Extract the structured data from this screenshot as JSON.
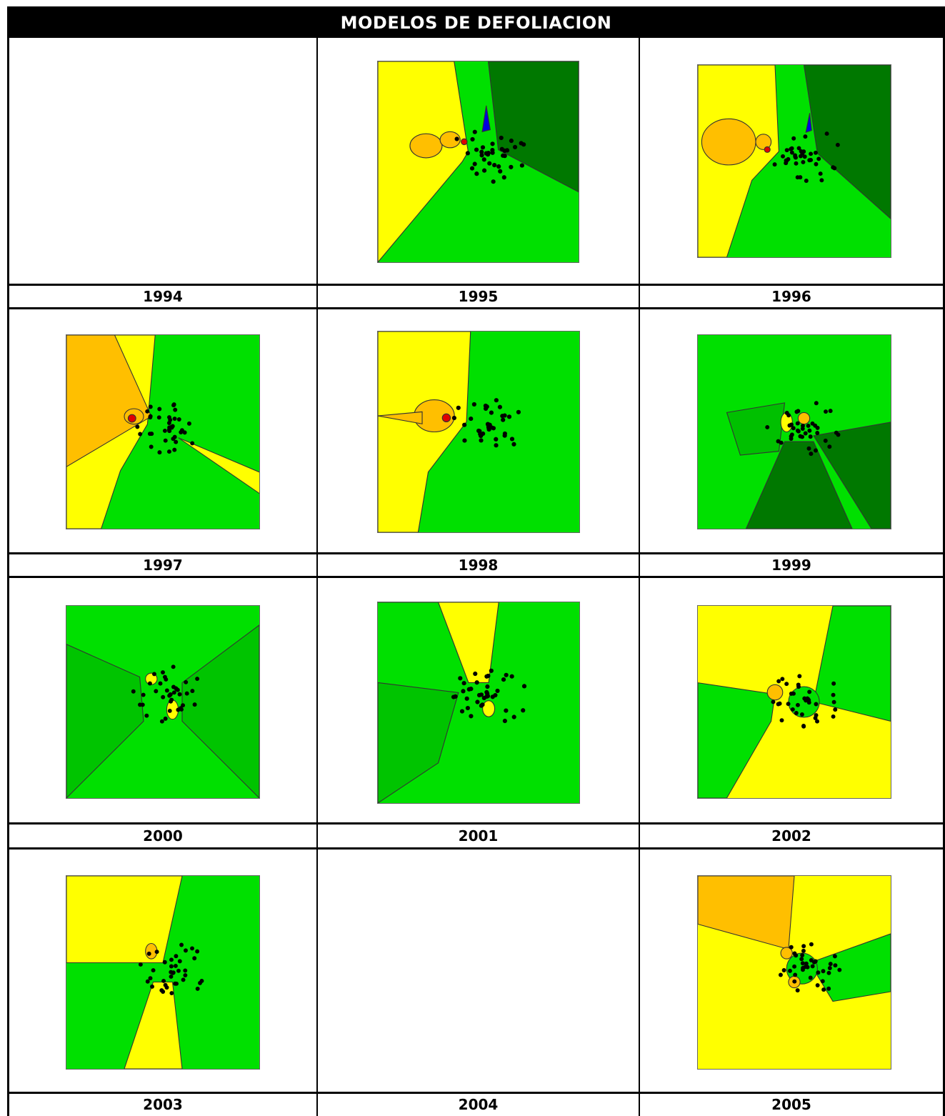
{
  "title": "MODELOS DE DEFOLIACION",
  "years": [
    "1994",
    "1995",
    "1996",
    "1997",
    "1998",
    "1999",
    "2000",
    "2001",
    "2002",
    "2003",
    "2004",
    "2005"
  ],
  "colors": {
    "dark_green": "#007800",
    "green": "#00e000",
    "yellow": "#ffff00",
    "orange": "#ffbf00",
    "red": "#e00000",
    "blue": "#0000e0"
  },
  "maps": [
    {
      "year": "1994",
      "has_map": false
    },
    {
      "year": "1995",
      "has_map": true,
      "variant": "a"
    },
    {
      "year": "1996",
      "has_map": true,
      "variant": "b"
    },
    {
      "year": "1997",
      "has_map": true,
      "variant": "c"
    },
    {
      "year": "1998",
      "has_map": true,
      "variant": "d"
    },
    {
      "year": "1999",
      "has_map": true,
      "variant": "e"
    },
    {
      "year": "2000",
      "has_map": true,
      "variant": "f"
    },
    {
      "year": "2001",
      "has_map": true,
      "variant": "g"
    },
    {
      "year": "2002",
      "has_map": true,
      "variant": "h"
    },
    {
      "year": "2003",
      "has_map": true,
      "variant": "i"
    },
    {
      "year": "2004",
      "has_map": false
    },
    {
      "year": "2005",
      "has_map": true,
      "variant": "j"
    }
  ]
}
